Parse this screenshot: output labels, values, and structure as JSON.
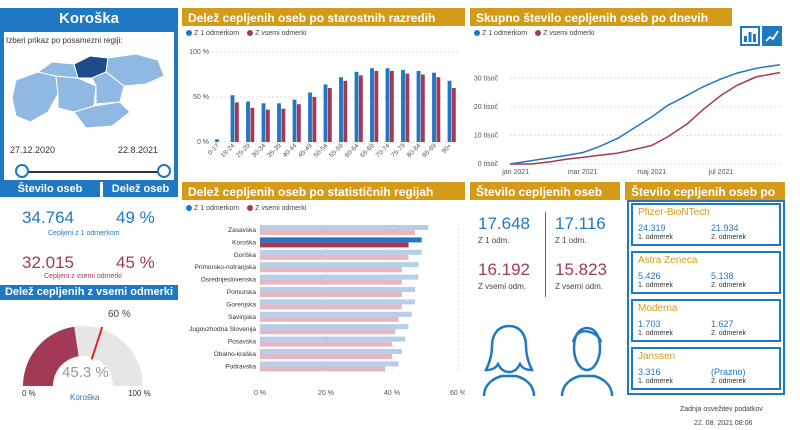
{
  "region": {
    "name": "Koroška",
    "prompt": "Izberi prikaz po posamezni regiji:",
    "date_from": "27.12.2020",
    "date_to": "22.8.2021"
  },
  "stats": {
    "count_label": "Število oseb",
    "share_label": "Delež oseb",
    "first_count": "34.764",
    "first_pct": "49 %",
    "first_caption": "Cepljeni z 1 odmerkom",
    "full_count": "32.015",
    "full_pct": "45 %",
    "full_caption": "Cepljeni z vsemi odmerki"
  },
  "gauge": {
    "title": "Delež cepljenih z vsemi odmerki",
    "value": "45.3 %",
    "target": "60 %",
    "min": "0 %",
    "max": "100 %",
    "region": "Koroška",
    "value_num": 45.3,
    "target_num": 60
  },
  "age_chart": {
    "title": "Delež cepljenih oseb po starostnih razredih",
    "legend": [
      "Z 1 odmerkom",
      "Z vsemi odmerki"
    ],
    "y_ticks": [
      "100 %",
      "50 %",
      "0 %"
    ]
  },
  "cum_chart": {
    "title": "Skupno število cepljenih oseb po dnevih",
    "legend": [
      "Z 1 odmerkom",
      "Z vsemi odmerki"
    ],
    "y_ticks": [
      "30 tisoč",
      "20 tisoč",
      "10 tisoč",
      "0 tisoč"
    ],
    "x_ticks": [
      "jan 2021",
      "mar 2021",
      "maj 2021",
      "jul 2021"
    ]
  },
  "region_chart": {
    "title": "Delež cepljenih oseb po statističnih regijah",
    "legend": [
      "Z 1 odmerkom",
      "Z vsemi odmerki"
    ],
    "x_ticks": [
      "0 %",
      "20 %",
      "40 %",
      "60 %"
    ]
  },
  "sex_chart": {
    "title": "Število cepljenih oseb po spolu",
    "female_first": "17.648",
    "male_first": "17.116",
    "female_full": "16.192",
    "male_full": "15.823",
    "first_label": "Z 1 odm.",
    "full_label": "Z vsemi odm."
  },
  "vaccine_chart": {
    "title": "Število cepljenih oseb po cepivu",
    "dose1_label": "1. odmerek",
    "dose2_label": "2. odmerek",
    "items": [
      {
        "name": "Pfizer-BioNTech",
        "dose1": "24.319",
        "dose2": "21.934"
      },
      {
        "name": "Astra Zeneca",
        "dose1": "5.426",
        "dose2": "5.138"
      },
      {
        "name": "Moderna",
        "dose1": "1.703",
        "dose2": "1.627"
      },
      {
        "name": "Janssen",
        "dose1": "3.316",
        "dose2": "(Prazno)"
      }
    ]
  },
  "footer": {
    "label": "Zadnja osvežitev podatkov",
    "timestamp": "22. 08. 2021 08:06"
  },
  "colors": {
    "blue": "#1f78c3",
    "red": "#a33a55",
    "gold": "#d49b1a",
    "light_blue": "#b7cfe6",
    "light_red": "#e3b7c3"
  },
  "chart_data": [
    {
      "type": "bar",
      "title": "Delež cepljenih oseb po starostnih razredih",
      "categories": [
        "0-17",
        "18-24",
        "25-29",
        "30-34",
        "35-39",
        "40-44",
        "45-49",
        "50-54",
        "55-59",
        "60-64",
        "65-69",
        "70-74",
        "75-79",
        "80-84",
        "85-89",
        "90+"
      ],
      "series": [
        {
          "name": "Z 1 odmerkom",
          "values": [
            3,
            52,
            45,
            43,
            43,
            47,
            55,
            64,
            72,
            78,
            82,
            82,
            80,
            79,
            77,
            68
          ]
        },
        {
          "name": "Z vsemi odmerki",
          "values": [
            0,
            44,
            38,
            36,
            37,
            42,
            50,
            60,
            68,
            74,
            79,
            79,
            76,
            75,
            72,
            60
          ]
        }
      ],
      "ylim": [
        0,
        100
      ]
    },
    {
      "type": "line",
      "title": "Skupno število cepljenih oseb po dnevih",
      "x": [
        "2020-12-27",
        "2021-01-15",
        "2021-02-01",
        "2021-02-15",
        "2021-03-01",
        "2021-03-15",
        "2021-04-01",
        "2021-04-15",
        "2021-05-01",
        "2021-05-15",
        "2021-06-01",
        "2021-06-15",
        "2021-07-01",
        "2021-07-15",
        "2021-08-01",
        "2021-08-22"
      ],
      "series": [
        {
          "name": "Z 1 odmerkom",
          "values": [
            0,
            1200,
            2200,
            3000,
            4000,
            6000,
            9000,
            12500,
            16500,
            20500,
            24000,
            27000,
            29800,
            31800,
            33500,
            34764
          ]
        },
        {
          "name": "Z vsemi odmerki",
          "values": [
            0,
            0,
            800,
            1700,
            2300,
            3000,
            3800,
            5000,
            6500,
            9500,
            14000,
            19000,
            24000,
            27500,
            30500,
            32015
          ]
        }
      ],
      "ylim": [
        0,
        35000
      ]
    },
    {
      "type": "bar",
      "title": "Delež cepljenih oseb po statističnih regijah",
      "categories": [
        "Zasavska",
        "Koroška",
        "Goriška",
        "Primorsko-notranjska",
        "Osrednjeslovenska",
        "Pomurska",
        "Gorenjska",
        "Savinjska",
        "Jugovzhodna Slovenija",
        "Posavska",
        "Obalno-kraška",
        "Podravska"
      ],
      "series": [
        {
          "name": "Z 1 odmerkom",
          "values": [
            51,
            49,
            49,
            48,
            48,
            47,
            47,
            46,
            45,
            44,
            43,
            42
          ]
        },
        {
          "name": "Z vsemi odmerki",
          "values": [
            47,
            45,
            45,
            43,
            43,
            43,
            43,
            42,
            41,
            40,
            40,
            38
          ]
        }
      ],
      "xlim": [
        0,
        60
      ]
    }
  ]
}
